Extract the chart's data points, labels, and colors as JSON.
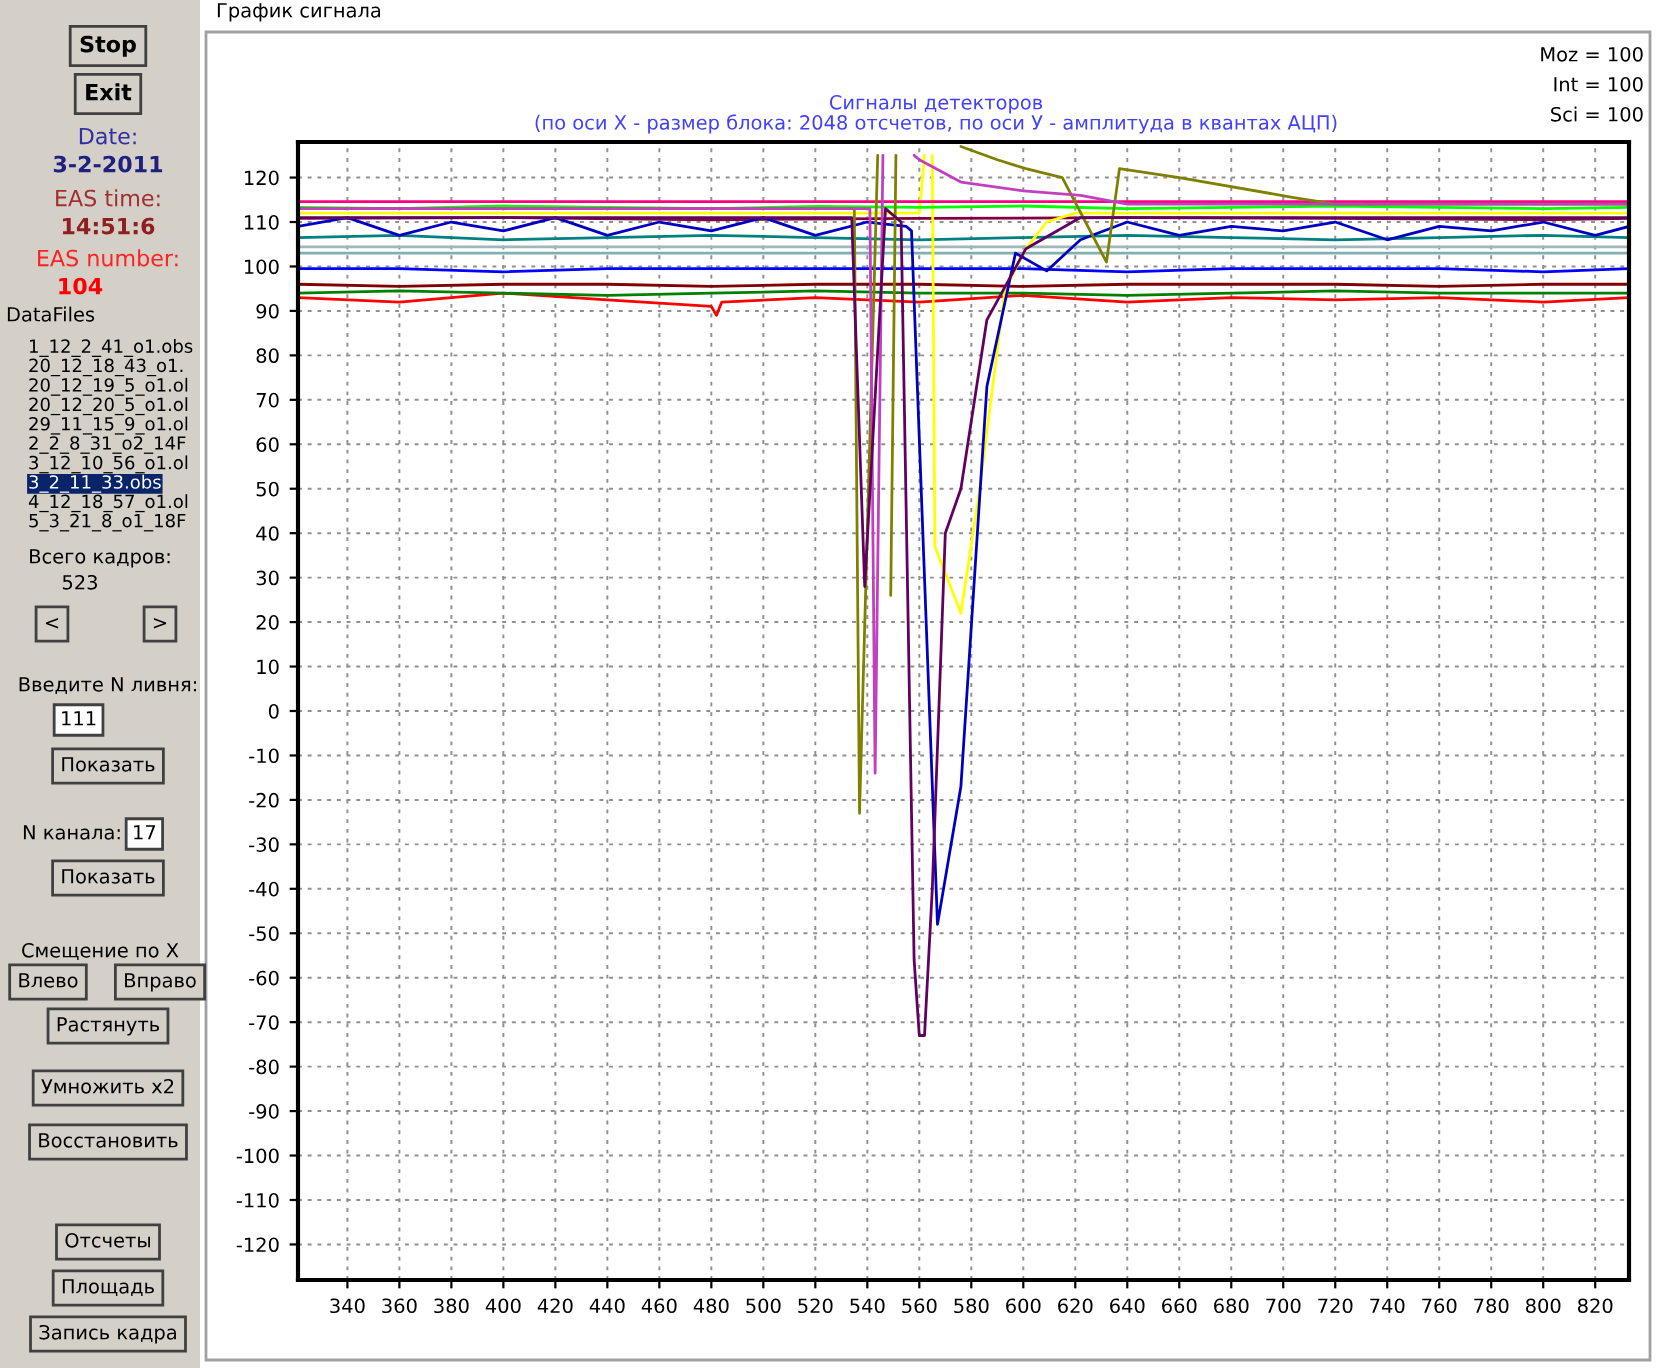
{
  "chart_data": {
    "type": "line",
    "title": "Сигналы детекторов",
    "subtitle": "(по оси X - размер блока: 2048 отсчетов, по оси У - амплитуда в квантах АЦП)",
    "xlim": [
      321,
      833
    ],
    "ylim": [
      -128,
      128
    ],
    "xticks": [
      340,
      360,
      380,
      400,
      420,
      440,
      460,
      480,
      500,
      520,
      540,
      560,
      580,
      600,
      620,
      640,
      660,
      680,
      700,
      720,
      740,
      760,
      780,
      800,
      820
    ],
    "yticks": [
      -120,
      -110,
      -100,
      -90,
      -80,
      -70,
      -60,
      -50,
      -40,
      -30,
      -20,
      -10,
      0,
      10,
      20,
      30,
      40,
      50,
      60,
      70,
      80,
      90,
      100,
      110,
      120
    ],
    "grid": true,
    "marker": "none",
    "line_style": "solid",
    "annotations": [
      "График сигнала",
      "Moz = 100",
      "Int = 100",
      "Sci = 100",
      "Stop",
      "Exit",
      "Date:",
      "3-2-2011",
      "EAS time:",
      "14:51:6",
      "EAS number:",
      "104",
      "DataFiles",
      "1_12_2_41_o1.obs",
      "20_12_18_43_o1.",
      "20_12_19_5_o1.ol",
      "20_12_20_5_o1.ol",
      "29_11_15_9_o1.ol",
      "2_2_8_31_o2_14F",
      "3_12_10_56_o1.ol",
      "3_2_11_33.obs",
      "4_12_18_57_o1.ol",
      "5_3_21_8_o1_18F",
      "Всего кадров:",
      "523",
      "<",
      ">",
      "Введите N ливня:",
      "111",
      "Показать",
      "N канала:",
      "17",
      "Показать",
      "Смещение по X",
      "Влево",
      "Вправо",
      "Растянуть",
      "Умножить x2",
      "Восстановить",
      "Отсчеты",
      "Площадь",
      "Запись кадра"
    ],
    "series": [
      {
        "color": "#ff0000",
        "x": [
          321,
          360,
          400,
          440,
          480,
          482,
          484,
          520,
          560,
          600,
          640,
          680,
          720,
          760,
          800,
          833
        ],
        "values": [
          93,
          92,
          94,
          92.5,
          91,
          89,
          92,
          93,
          92,
          93.5,
          92,
          93,
          92.5,
          93,
          92,
          93
        ]
      },
      {
        "color": "#008000",
        "x": [
          321,
          360,
          400,
          440,
          480,
          520,
          560,
          600,
          640,
          680,
          720,
          760,
          800,
          833
        ],
        "values": [
          94,
          94.5,
          94,
          93.5,
          94,
          94.5,
          94,
          94,
          93.5,
          94,
          94.5,
          94,
          94,
          94
        ]
      },
      {
        "color": "#800000",
        "x": [
          321,
          360,
          400,
          440,
          480,
          520,
          560,
          600,
          640,
          680,
          720,
          760,
          800,
          833
        ],
        "values": [
          96,
          95.5,
          96,
          96,
          95.5,
          96,
          96,
          95.5,
          96,
          96,
          96,
          95.5,
          96,
          96
        ]
      },
      {
        "color": "#0000ff",
        "x": [
          321,
          360,
          400,
          440,
          480,
          520,
          560,
          600,
          640,
          680,
          720,
          760,
          800,
          833
        ],
        "values": [
          99.5,
          99.5,
          98.8,
          99.5,
          99.5,
          99.5,
          99.5,
          99.5,
          98.8,
          99.5,
          99.5,
          99.5,
          98.8,
          99.5
        ]
      },
      {
        "color": "#80b0b0",
        "x": [
          321,
          833
        ],
        "values": [
          103,
          103
        ]
      },
      {
        "color": "#a0b8b8",
        "x": [
          321,
          833
        ],
        "values": [
          104.4,
          104.4
        ]
      },
      {
        "color": "#008080",
        "x": [
          321,
          360,
          400,
          440,
          480,
          520,
          560,
          600,
          640,
          680,
          720,
          760,
          800,
          833
        ],
        "values": [
          106.5,
          107,
          106,
          106.5,
          107,
          106.5,
          106,
          106.5,
          107,
          106.5,
          106,
          106.5,
          107,
          106.5
        ]
      },
      {
        "color": "#800040",
        "x": [
          321,
          400,
          480,
          560,
          640,
          720,
          800,
          833
        ],
        "values": [
          110.8,
          111,
          110.5,
          110.8,
          111,
          110.8,
          110.5,
          110.8
        ]
      },
      {
        "color": "#ffff00",
        "x": [
          321,
          400,
          480,
          560,
          562,
          564,
          565,
          566,
          576,
          583,
          593,
          601,
          609,
          620,
          700,
          833
        ],
        "values": [
          112,
          112,
          112,
          112,
          125,
          null,
          125,
          37,
          22,
          49,
          95,
          104,
          110,
          112,
          112,
          112
        ]
      },
      {
        "color": "#00ff00",
        "x": [
          321,
          360,
          400,
          440,
          480,
          520,
          560,
          600,
          640,
          680,
          720,
          760,
          800,
          833
        ],
        "values": [
          113.3,
          113,
          113.6,
          113.3,
          113,
          113.5,
          113.3,
          113.6,
          113,
          113.3,
          113.6,
          113.3,
          113,
          113.3
        ]
      },
      {
        "color": "#ff0080",
        "x": [
          321,
          833
        ],
        "values": [
          114.6,
          114.6
        ]
      },
      {
        "color": "#0000c0",
        "x": [
          321,
          340,
          360,
          380,
          400,
          420,
          440,
          460,
          480,
          500,
          520,
          540,
          555,
          557,
          567,
          576,
          586,
          597,
          609,
          622,
          640,
          660,
          680,
          700,
          720,
          740,
          760,
          780,
          800,
          820,
          833
        ],
        "values": [
          109,
          111,
          107,
          110,
          108,
          111,
          107,
          110,
          108,
          111,
          107,
          110,
          109,
          108,
          -48,
          -17,
          73,
          103,
          99,
          106,
          110,
          107,
          109,
          108,
          110,
          106,
          109,
          108,
          110,
          107,
          109
        ]
      },
      {
        "color": "#808000",
        "x": [
          321,
          535,
          537,
          544,
          546,
          549,
          551,
          568,
          576,
          590,
          601,
          615,
          632,
          637,
          660,
          704,
          720,
          833
        ],
        "values": [
          113,
          113,
          -23,
          125,
          null,
          26,
          125,
          null,
          127,
          124,
          122,
          120,
          101,
          122,
          120,
          115.5,
          114,
          114
        ]
      },
      {
        "color": "#c040c0",
        "x": [
          321,
          541,
          543,
          546,
          550,
          558,
          560,
          576,
          600,
          622,
          640,
          833
        ],
        "values": [
          113,
          113,
          -14,
          125,
          null,
          125,
          124,
          119,
          117,
          116,
          114,
          114
        ]
      },
      {
        "color": "#600060",
        "x": [
          321,
          534,
          539,
          547,
          553,
          558,
          560,
          562,
          565,
          570,
          576,
          586,
          601,
          622,
          833
        ],
        "values": [
          111,
          111,
          28,
          113,
          110,
          -56,
          -73,
          -73,
          -40,
          40,
          50,
          88,
          104,
          111,
          111
        ]
      }
    ]
  }
}
